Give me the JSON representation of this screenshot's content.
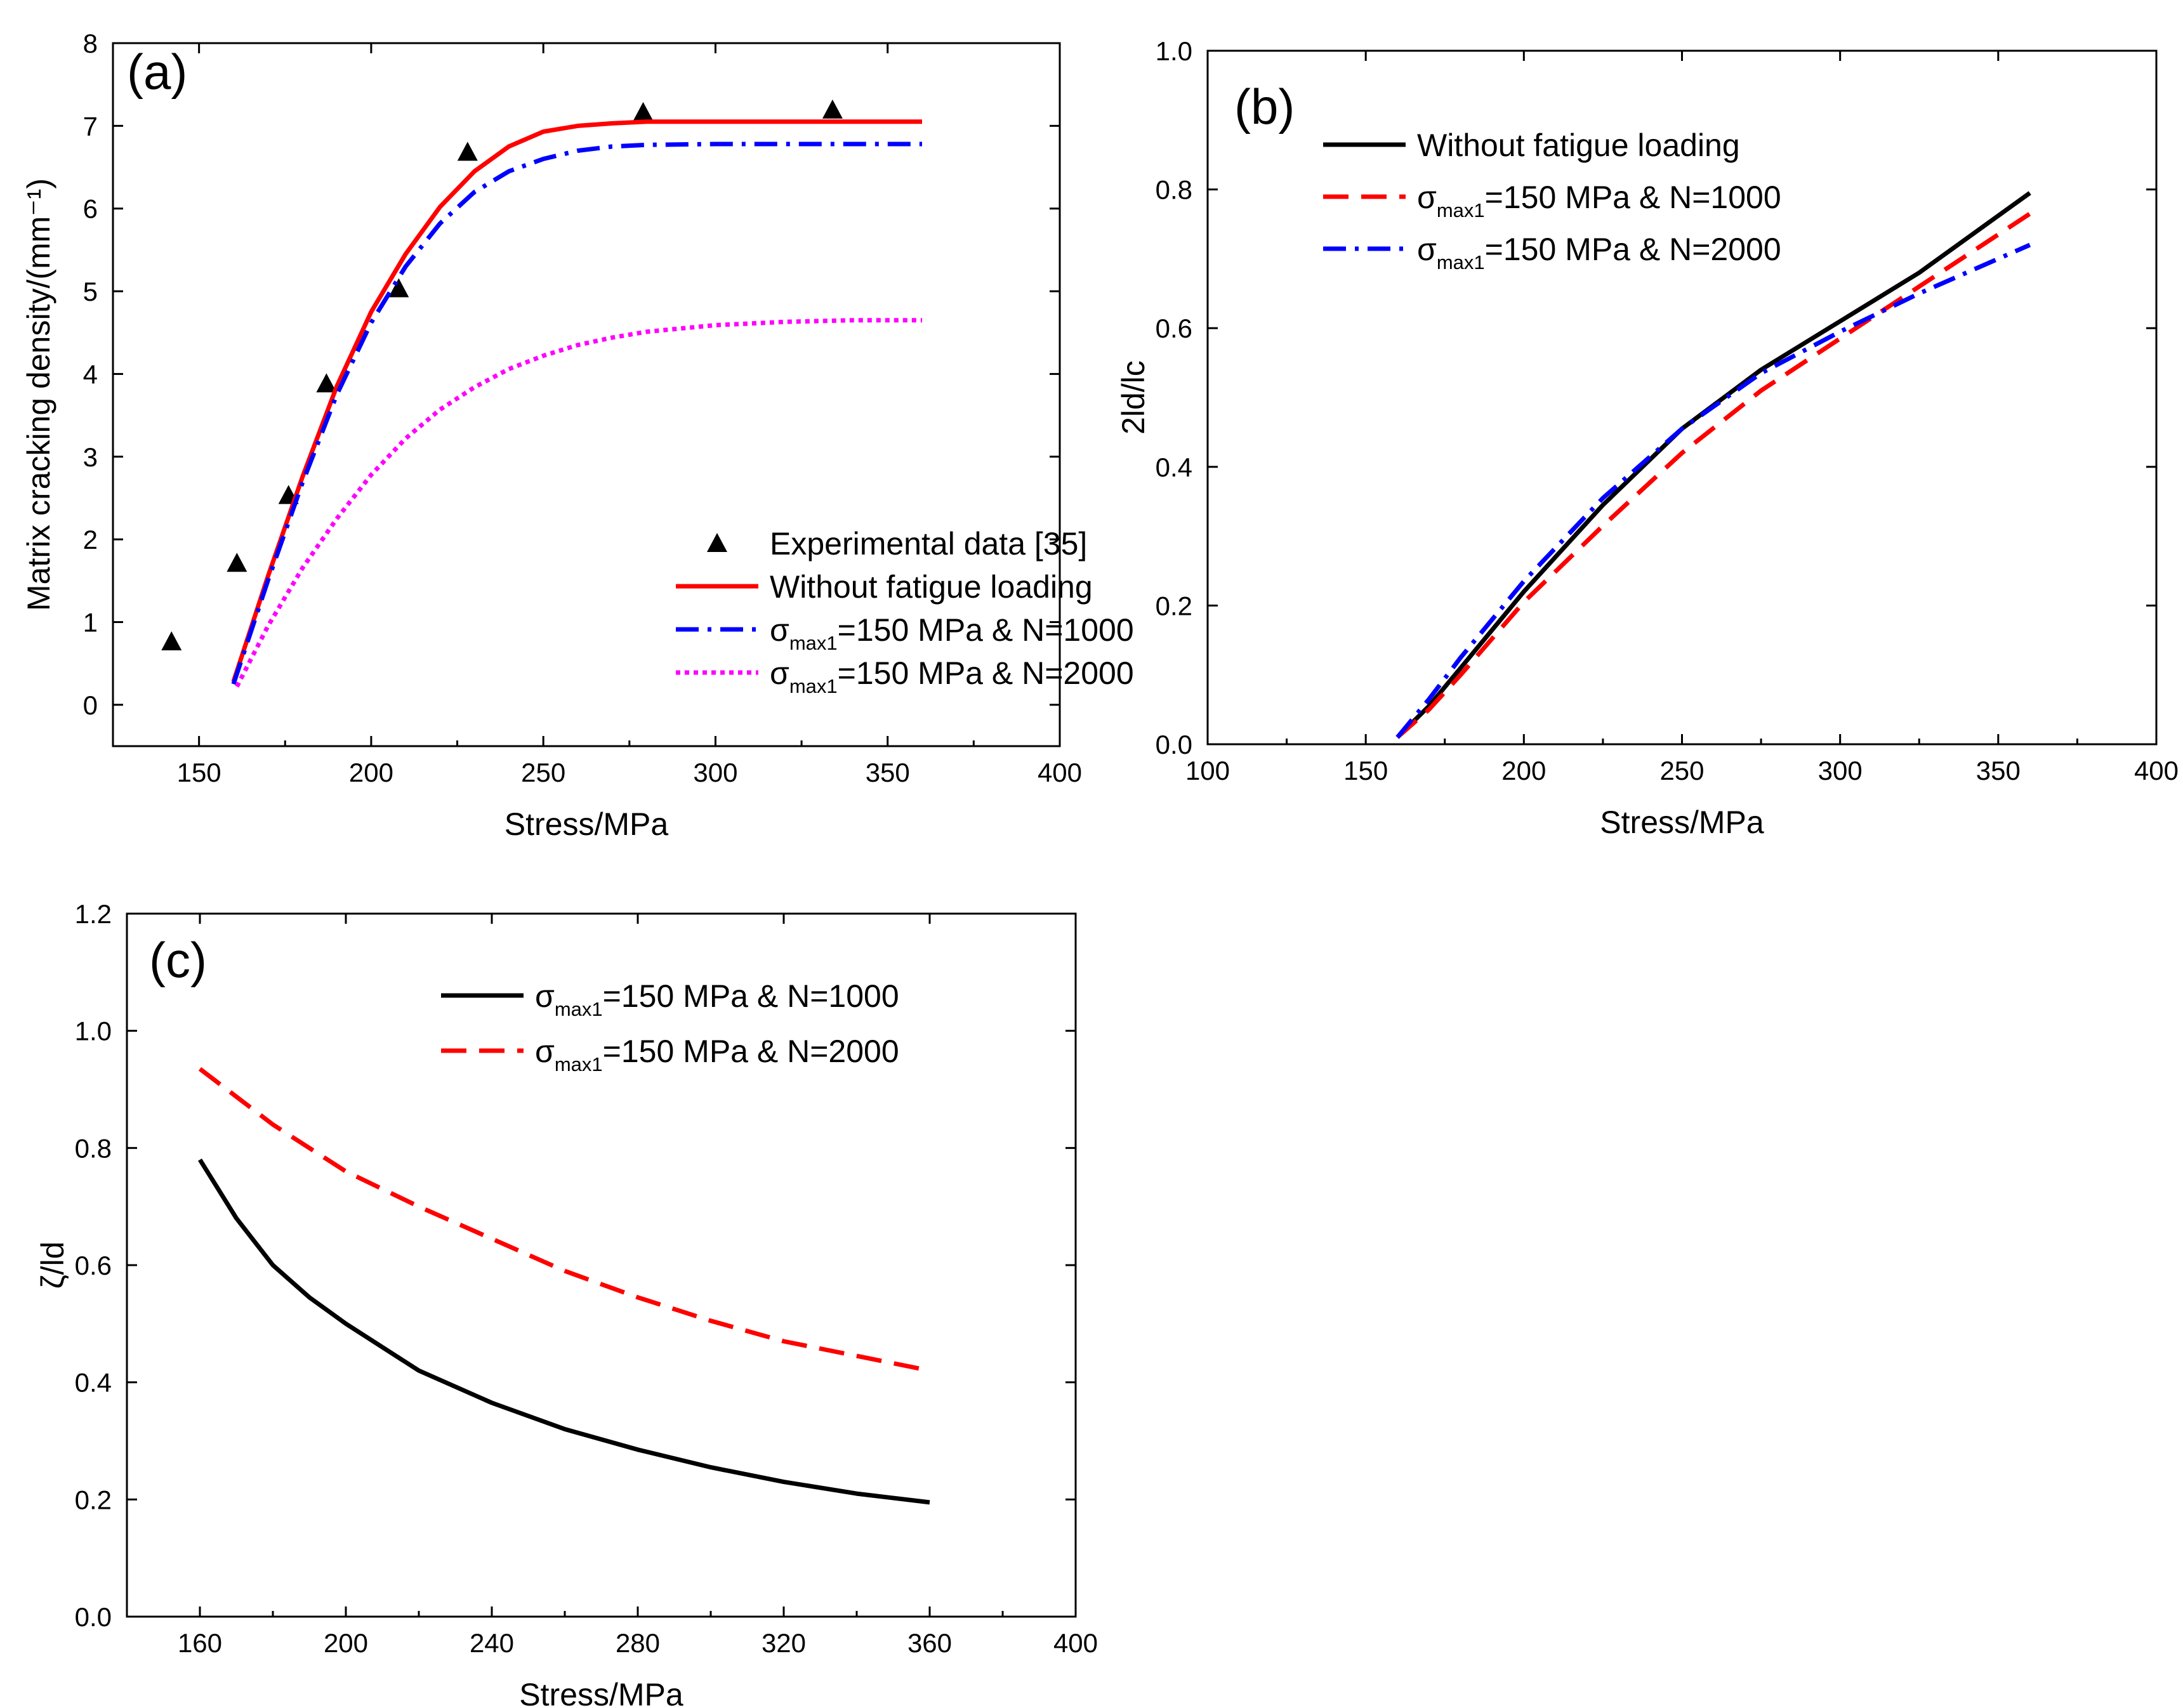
{
  "chart_data": [
    {
      "type": "line",
      "panel_label": "(a)",
      "xlabel": "Stress/MPa",
      "ylabel": "Matrix cracking density/(mm⁻¹)",
      "xlim": [
        125,
        400
      ],
      "ylim": [
        -0.5,
        8
      ],
      "xticks": [
        150,
        200,
        250,
        300,
        350,
        400
      ],
      "yticks": [
        0,
        1,
        2,
        3,
        4,
        5,
        6,
        7,
        8
      ],
      "legend_position": "bottom-right",
      "series": [
        {
          "name": "Experimental data [35]",
          "legend": {
            "pre": "Experimental data [35]",
            "sub": "",
            "post": ""
          },
          "style": "marker",
          "color": "#000000",
          "x": [
            142,
            161,
            176,
            187,
            208,
            228,
            279,
            334
          ],
          "y": [
            0.75,
            1.7,
            2.52,
            3.87,
            5.02,
            6.67,
            7.15,
            7.18
          ]
        },
        {
          "name": "Without fatigue loading",
          "legend": {
            "pre": "Without fatigue loading",
            "sub": "",
            "post": ""
          },
          "style": "solid",
          "color": "#ff0000",
          "x": [
            160,
            170,
            180,
            190,
            200,
            210,
            220,
            230,
            240,
            250,
            260,
            270,
            280,
            300,
            320,
            340,
            360
          ],
          "y": [
            0.28,
            1.55,
            2.75,
            3.85,
            4.75,
            5.45,
            6.02,
            6.45,
            6.75,
            6.93,
            7.0,
            7.03,
            7.05,
            7.05,
            7.05,
            7.05,
            7.05
          ]
        },
        {
          "name": "σmax1=150 MPa & N=1000",
          "legend": {
            "pre": "σ",
            "sub": "max1",
            "post": "=150 MPa & N=1000"
          },
          "style": "dashdot",
          "color": "#0000ff",
          "x": [
            160,
            170,
            180,
            190,
            200,
            210,
            220,
            230,
            240,
            250,
            260,
            270,
            280,
            300,
            320,
            340,
            360
          ],
          "y": [
            0.25,
            1.5,
            2.68,
            3.75,
            4.62,
            5.3,
            5.82,
            6.2,
            6.45,
            6.6,
            6.7,
            6.75,
            6.77,
            6.78,
            6.78,
            6.78,
            6.78
          ]
        },
        {
          "name": "σmax1=150 MPa & N=2000",
          "legend": {
            "pre": "σ",
            "sub": "max1",
            "post": "=150 MPa & N=2000"
          },
          "style": "dotted",
          "color": "#ff00ff",
          "x": [
            161,
            170,
            180,
            190,
            200,
            210,
            220,
            230,
            240,
            250,
            260,
            270,
            280,
            300,
            320,
            340,
            360
          ],
          "y": [
            0.22,
            0.95,
            1.65,
            2.25,
            2.78,
            3.22,
            3.57,
            3.84,
            4.06,
            4.22,
            4.35,
            4.44,
            4.51,
            4.59,
            4.63,
            4.65,
            4.65
          ]
        }
      ]
    },
    {
      "type": "line",
      "panel_label": "(b)",
      "xlabel": "Stress/MPa",
      "ylabel": "2ld/lc",
      "xlim": [
        100,
        400
      ],
      "ylim": [
        0,
        1.0
      ],
      "xticks": [
        100,
        150,
        200,
        250,
        300,
        350,
        400
      ],
      "yticks": [
        0.0,
        0.2,
        0.4,
        0.6,
        0.8,
        1.0
      ],
      "legend_position": "top-left",
      "series": [
        {
          "name": "Without fatigue loading",
          "legend": {
            "pre": "Without fatigue loading",
            "sub": "",
            "post": ""
          },
          "style": "solid",
          "color": "#000000",
          "x": [
            160,
            170,
            180,
            200,
            225,
            250,
            275,
            300,
            325,
            360
          ],
          "y": [
            0.01,
            0.055,
            0.11,
            0.22,
            0.345,
            0.455,
            0.54,
            0.61,
            0.68,
            0.795
          ]
        },
        {
          "name": "σmax1=150 MPa & N=1000",
          "legend": {
            "pre": "σ",
            "sub": "max1",
            "post": "=150 MPa & N=1000"
          },
          "style": "dashed",
          "color": "#ff0000",
          "x": [
            160,
            170,
            180,
            200,
            225,
            250,
            275,
            300,
            325,
            360
          ],
          "y": [
            0.01,
            0.05,
            0.1,
            0.205,
            0.315,
            0.42,
            0.51,
            0.585,
            0.66,
            0.765
          ]
        },
        {
          "name": "σmax1=150 MPa & N=2000",
          "legend": {
            "pre": "σ",
            "sub": "max1",
            "post": "=150 MPa & N=2000"
          },
          "style": "dashdot",
          "color": "#0000ff",
          "x": [
            160,
            170,
            180,
            200,
            225,
            250,
            275,
            300,
            325,
            360
          ],
          "y": [
            0.01,
            0.065,
            0.125,
            0.235,
            0.355,
            0.455,
            0.535,
            0.595,
            0.65,
            0.72
          ]
        }
      ]
    },
    {
      "type": "line",
      "panel_label": "(c)",
      "xlabel": "Stress/MPa",
      "ylabel": "ζ/ld",
      "xlim": [
        140,
        400
      ],
      "ylim": [
        0,
        1.2
      ],
      "xticks": [
        160,
        200,
        240,
        280,
        320,
        360,
        400
      ],
      "yticks": [
        0.0,
        0.2,
        0.4,
        0.6,
        0.8,
        1.0,
        1.2
      ],
      "legend_position": "top-right",
      "series": [
        {
          "name": "σmax1=150 MPa & N=1000",
          "legend": {
            "pre": "σ",
            "sub": "max1",
            "post": "=150 MPa & N=1000"
          },
          "style": "solid",
          "color": "#000000",
          "x": [
            160,
            170,
            180,
            190,
            200,
            220,
            240,
            260,
            280,
            300,
            320,
            340,
            360
          ],
          "y": [
            0.78,
            0.68,
            0.6,
            0.545,
            0.5,
            0.42,
            0.365,
            0.32,
            0.285,
            0.255,
            0.23,
            0.21,
            0.195
          ]
        },
        {
          "name": "σmax1=150 MPa & N=2000",
          "legend": {
            "pre": "σ",
            "sub": "max1",
            "post": "=150 MPa & N=2000"
          },
          "style": "dashed",
          "color": "#ff0000",
          "x": [
            160,
            180,
            200,
            220,
            240,
            260,
            280,
            300,
            320,
            340,
            360
          ],
          "y": [
            0.935,
            0.84,
            0.76,
            0.7,
            0.645,
            0.59,
            0.545,
            0.505,
            0.47,
            0.445,
            0.42
          ]
        }
      ]
    }
  ]
}
